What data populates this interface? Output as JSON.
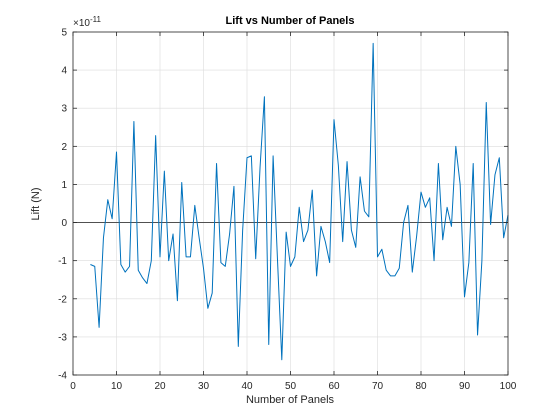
{
  "chart_data": {
    "type": "line",
    "title": "Lift vs Number of Panels",
    "xlabel": "Number of Panels",
    "ylabel": "Lift (N)",
    "y_exponent": "×10",
    "y_exponent_power": "-11",
    "xlim": [
      0,
      100
    ],
    "ylim": [
      -4,
      5
    ],
    "xticks": [
      0,
      10,
      20,
      30,
      40,
      50,
      60,
      70,
      80,
      90,
      100
    ],
    "yticks": [
      -4,
      -3,
      -2,
      -1,
      0,
      1,
      2,
      3,
      4,
      5
    ],
    "grid": true,
    "y_scale_factor": 1e-11,
    "colors": {
      "series": "#0072BD",
      "zero_line": "#3a3a3a",
      "grid": "#dcdcdc",
      "axes": "#262626"
    },
    "series": [
      {
        "x": [
          4,
          5,
          6,
          7,
          8,
          9,
          10,
          11,
          12,
          13,
          14,
          15,
          16,
          17,
          18,
          19,
          20,
          21,
          22,
          23,
          24,
          25,
          26,
          27,
          28,
          29,
          30,
          31,
          32,
          33,
          34,
          35,
          36,
          37,
          38,
          39,
          40,
          41,
          42,
          43,
          44,
          45,
          46,
          47,
          48,
          49,
          50,
          51,
          52,
          53,
          54,
          55,
          56,
          57,
          58,
          59,
          60,
          61,
          62,
          63,
          64,
          65,
          66,
          67,
          68,
          69,
          70,
          71,
          72,
          73,
          74,
          75,
          76,
          77,
          78,
          79,
          80,
          81,
          82,
          83,
          84,
          85,
          86,
          87,
          88,
          89,
          90,
          91,
          92,
          93,
          94,
          95,
          96,
          97,
          98,
          99,
          100
        ],
        "y": [
          -1.1,
          -1.15,
          -2.75,
          -0.4,
          0.6,
          0.1,
          1.85,
          -1.1,
          -1.3,
          -1.15,
          2.65,
          -1.25,
          -1.45,
          -1.6,
          -1.0,
          2.28,
          -0.9,
          1.35,
          -1.0,
          -0.3,
          -2.05,
          1.05,
          -0.9,
          -0.9,
          0.45,
          -0.4,
          -1.2,
          -2.25,
          -1.85,
          1.55,
          -1.05,
          -1.15,
          -0.3,
          0.95,
          -3.25,
          -0.2,
          1.7,
          1.75,
          -0.95,
          1.45,
          3.3,
          -3.2,
          1.75,
          -0.95,
          -3.6,
          -0.25,
          -1.15,
          -0.9,
          0.4,
          -0.5,
          -0.2,
          0.85,
          -1.4,
          -0.1,
          -0.5,
          -1.05,
          2.7,
          1.5,
          -0.5,
          1.6,
          -0.2,
          -0.65,
          1.2,
          0.3,
          0.15,
          4.7,
          -0.9,
          -0.7,
          -1.25,
          -1.4,
          -1.4,
          -1.2,
          0.0,
          0.45,
          -1.3,
          -0.35,
          0.8,
          0.4,
          0.65,
          -1.0,
          1.55,
          -0.45,
          0.4,
          -0.1,
          2.0,
          1.0,
          -1.95,
          -1.05,
          1.55,
          -2.95,
          -1.0,
          3.15,
          -0.05,
          1.25,
          1.7,
          -0.4,
          0.2
        ]
      }
    ]
  }
}
